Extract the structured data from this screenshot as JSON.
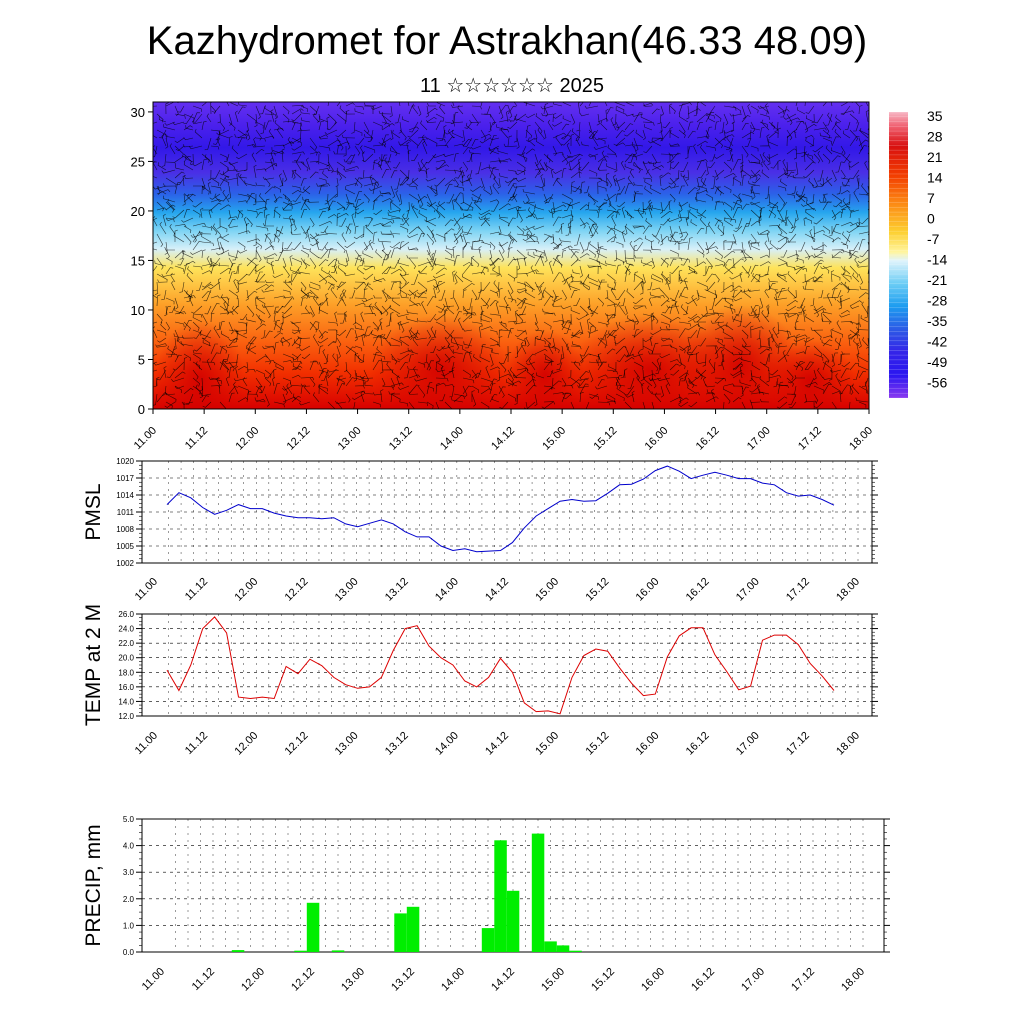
{
  "header": {
    "title": "Kazhydromet for Astrakhan(46.33 48.09)",
    "subtitle": "11 ☆☆☆☆☆☆ 2025"
  },
  "time_labels": [
    "11.00",
    "11.12",
    "12.00",
    "12.12",
    "13.00",
    "13.12",
    "14.00",
    "14.12",
    "15.00",
    "15.12",
    "16.00",
    "16.12",
    "17.00",
    "17.12",
    "18.00"
  ],
  "chart_data": [
    {
      "type": "heatmap",
      "title": "Kazhydromet for Astrakhan(46.33 48.09)",
      "subtitle": "11 ☆☆☆☆☆☆ 2025",
      "x_ticks": [
        "11.00",
        "11.12",
        "12.00",
        "12.12",
        "13.00",
        "13.12",
        "14.00",
        "14.12",
        "15.00",
        "15.12",
        "16.00",
        "16.12",
        "17.00",
        "17.12",
        "18.00"
      ],
      "y_ticks": [
        0,
        5,
        10,
        15,
        20,
        25,
        30
      ],
      "ylim": [
        0,
        31
      ],
      "colorbar": {
        "labels": [
          "35",
          "28",
          "21",
          "14",
          "7",
          "0",
          "-7",
          "-14",
          "-21",
          "-28",
          "-35",
          "-42",
          "-49",
          "-56"
        ],
        "range": [
          -60,
          37
        ]
      },
      "overlay": "wind barbs",
      "legend": "right"
    },
    {
      "type": "line",
      "ylabel": "PMSL",
      "y_ticks": [
        "1020",
        "1017",
        "1014",
        "1011",
        "1008",
        "1005",
        "1002"
      ],
      "ylim": [
        1002,
        1020
      ],
      "color": "#0000cc",
      "values": [
        1012.3,
        1014.4,
        1013.5,
        1011.8,
        1010.6,
        1011.3,
        1012.3,
        1011.6,
        1011.6,
        1010.8,
        1010.3,
        1010.0,
        1010.0,
        1009.8,
        1010.0,
        1008.9,
        1008.4,
        1009.0,
        1009.6,
        1008.9,
        1007.5,
        1006.6,
        1006.6,
        1005.0,
        1004.2,
        1004.5,
        1004.0,
        1004.1,
        1004.2,
        1005.6,
        1008.2,
        1010.3,
        1011.6,
        1012.9,
        1013.2,
        1012.9,
        1013.0,
        1014.3,
        1015.8,
        1015.9,
        1016.8,
        1018.3,
        1019.1,
        1018.2,
        1016.9,
        1017.5,
        1018.0,
        1017.5,
        1016.9,
        1016.9,
        1016.1,
        1015.8,
        1014.4,
        1013.8,
        1014.0,
        1013.2,
        1012.2
      ]
    },
    {
      "type": "line",
      "ylabel": "TEMP at 2 M",
      "y_ticks": [
        "26.0",
        "24.0",
        "22.0",
        "20.0",
        "18.0",
        "16.0",
        "14.0",
        "12.0"
      ],
      "ylim": [
        12,
        26
      ],
      "color": "#dd0000",
      "values": [
        18.3,
        15.5,
        19.0,
        24.0,
        25.6,
        23.4,
        14.6,
        14.4,
        14.6,
        14.4,
        18.8,
        17.8,
        19.8,
        18.9,
        17.3,
        16.3,
        15.8,
        16.0,
        17.3,
        21.0,
        24.0,
        24.4,
        21.6,
        20.0,
        19.0,
        16.8,
        16.0,
        17.3,
        19.9,
        18.0,
        13.8,
        12.6,
        12.7,
        12.3,
        17.3,
        20.3,
        21.2,
        20.9,
        18.6,
        16.5,
        14.8,
        15.0,
        20.1,
        23.0,
        24.1,
        24.1,
        20.4,
        18.1,
        15.6,
        16.1,
        22.4,
        23.1,
        23.1,
        21.8,
        19.2,
        17.5,
        15.5
      ]
    },
    {
      "type": "bar",
      "ylabel": "PRECIP, mm",
      "y_ticks": [
        "5.0",
        "4.0",
        "3.0",
        "2.0",
        "1.0",
        "0.0"
      ],
      "ylim": [
        0,
        5
      ],
      "color": "#00ee00",
      "values": [
        0,
        0,
        0,
        0,
        0,
        0,
        0.07,
        0,
        0,
        0,
        0,
        0.05,
        1.85,
        0,
        0.06,
        0,
        0,
        0,
        0,
        1.45,
        1.7,
        0,
        0,
        0,
        0,
        0,
        0.9,
        4.2,
        2.3,
        0,
        4.45,
        0.4,
        0.25,
        0.05,
        0,
        0,
        0,
        0,
        0,
        0,
        0,
        0,
        0,
        0,
        0,
        0,
        0,
        0,
        0,
        0,
        0,
        0,
        0,
        0,
        0,
        0,
        0
      ]
    }
  ]
}
